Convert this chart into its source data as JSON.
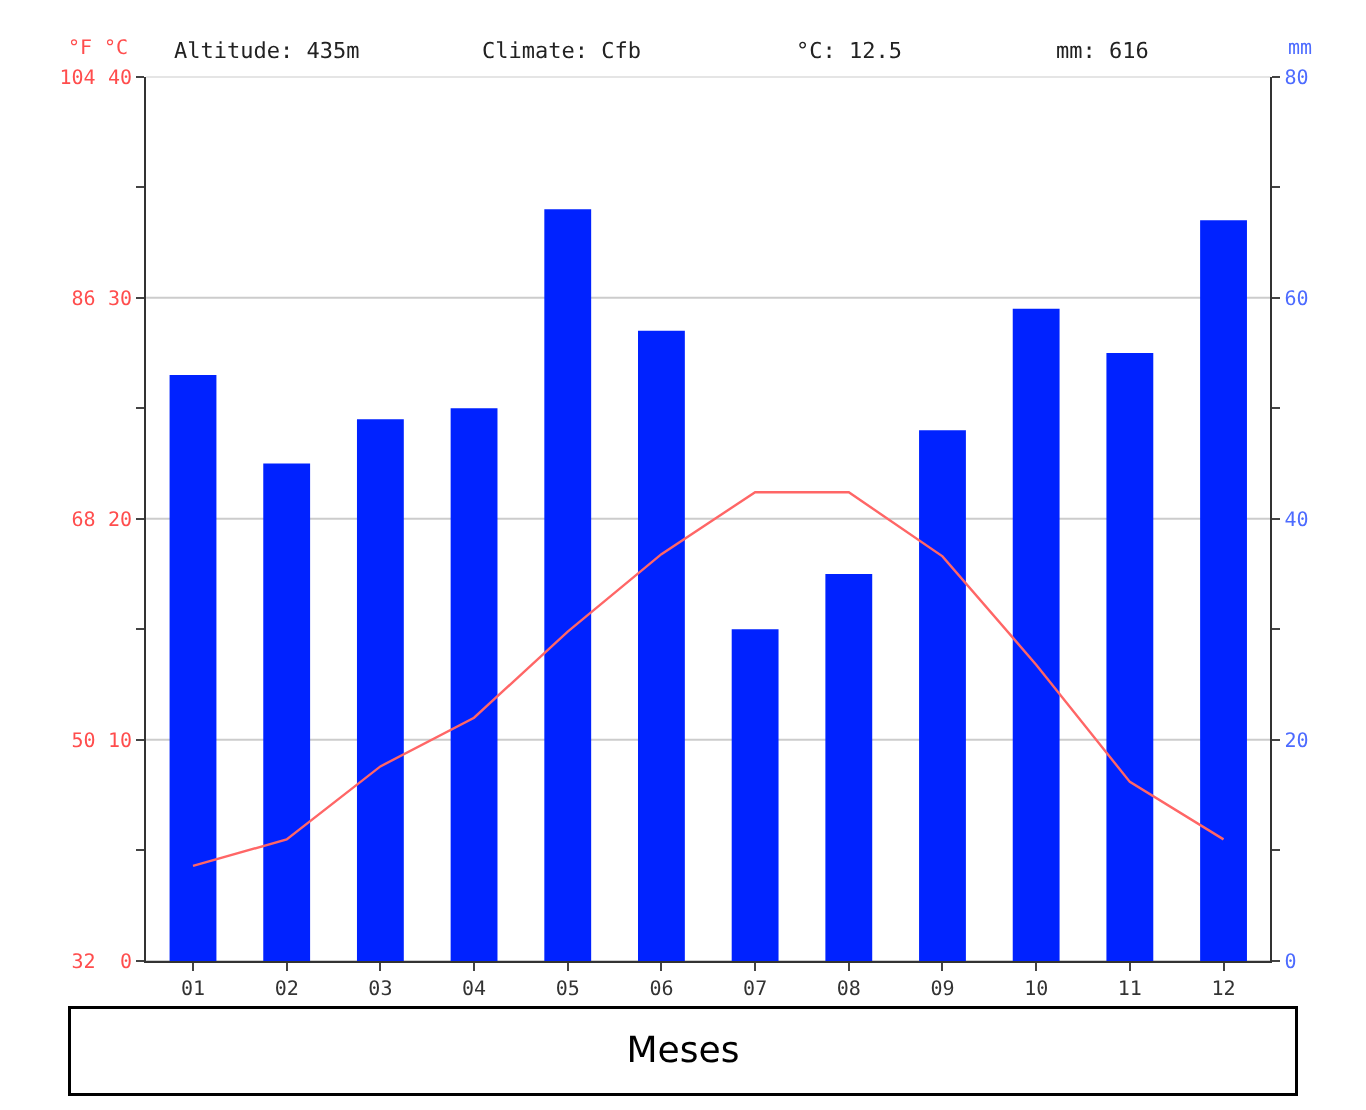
{
  "chart_data": {
    "type": "bar",
    "categories": [
      "01",
      "02",
      "03",
      "04",
      "05",
      "06",
      "07",
      "08",
      "09",
      "10",
      "11",
      "12"
    ],
    "series": [
      {
        "type": "bar",
        "axis": "y3",
        "color": "#0022ff",
        "values": [
          53,
          45,
          49,
          50,
          68,
          57,
          30,
          35,
          48,
          59,
          55,
          67
        ]
      },
      {
        "type": "line",
        "axis": "y",
        "color": "#ff6666",
        "values": [
          4.3,
          5.5,
          8.8,
          11.0,
          14.9,
          18.4,
          21.2,
          21.2,
          18.3,
          13.4,
          8.1,
          5.5
        ]
      }
    ],
    "xlabel": "Meses",
    "ylabel": "°C",
    "y2label": "°F",
    "y3label": "mm",
    "ylim": [
      0,
      40
    ],
    "yticks": [
      0,
      {
        "value": 5,
        "label": null
      },
      10,
      {
        "value": 15,
        "label": null
      },
      20,
      {
        "value": 25,
        "label": null
      },
      30,
      {
        "value": 35,
        "label": null
      },
      40
    ],
    "y2lim": [
      32,
      104
    ],
    "y2ticks": [
      32,
      50,
      68,
      86,
      104
    ],
    "y3lim": [
      0,
      80
    ],
    "y3ticks": [
      0,
      {
        "value": 10,
        "label": null
      },
      20,
      {
        "value": 30,
        "label": null
      },
      40,
      {
        "value": 50,
        "label": null
      },
      60,
      {
        "value": 70,
        "label": null
      },
      80
    ],
    "annotations": [
      "Altitude: 435m",
      "Climate: Cfb",
      "°C: 12.5",
      "mm: 616"
    ],
    "grid": "y"
  }
}
